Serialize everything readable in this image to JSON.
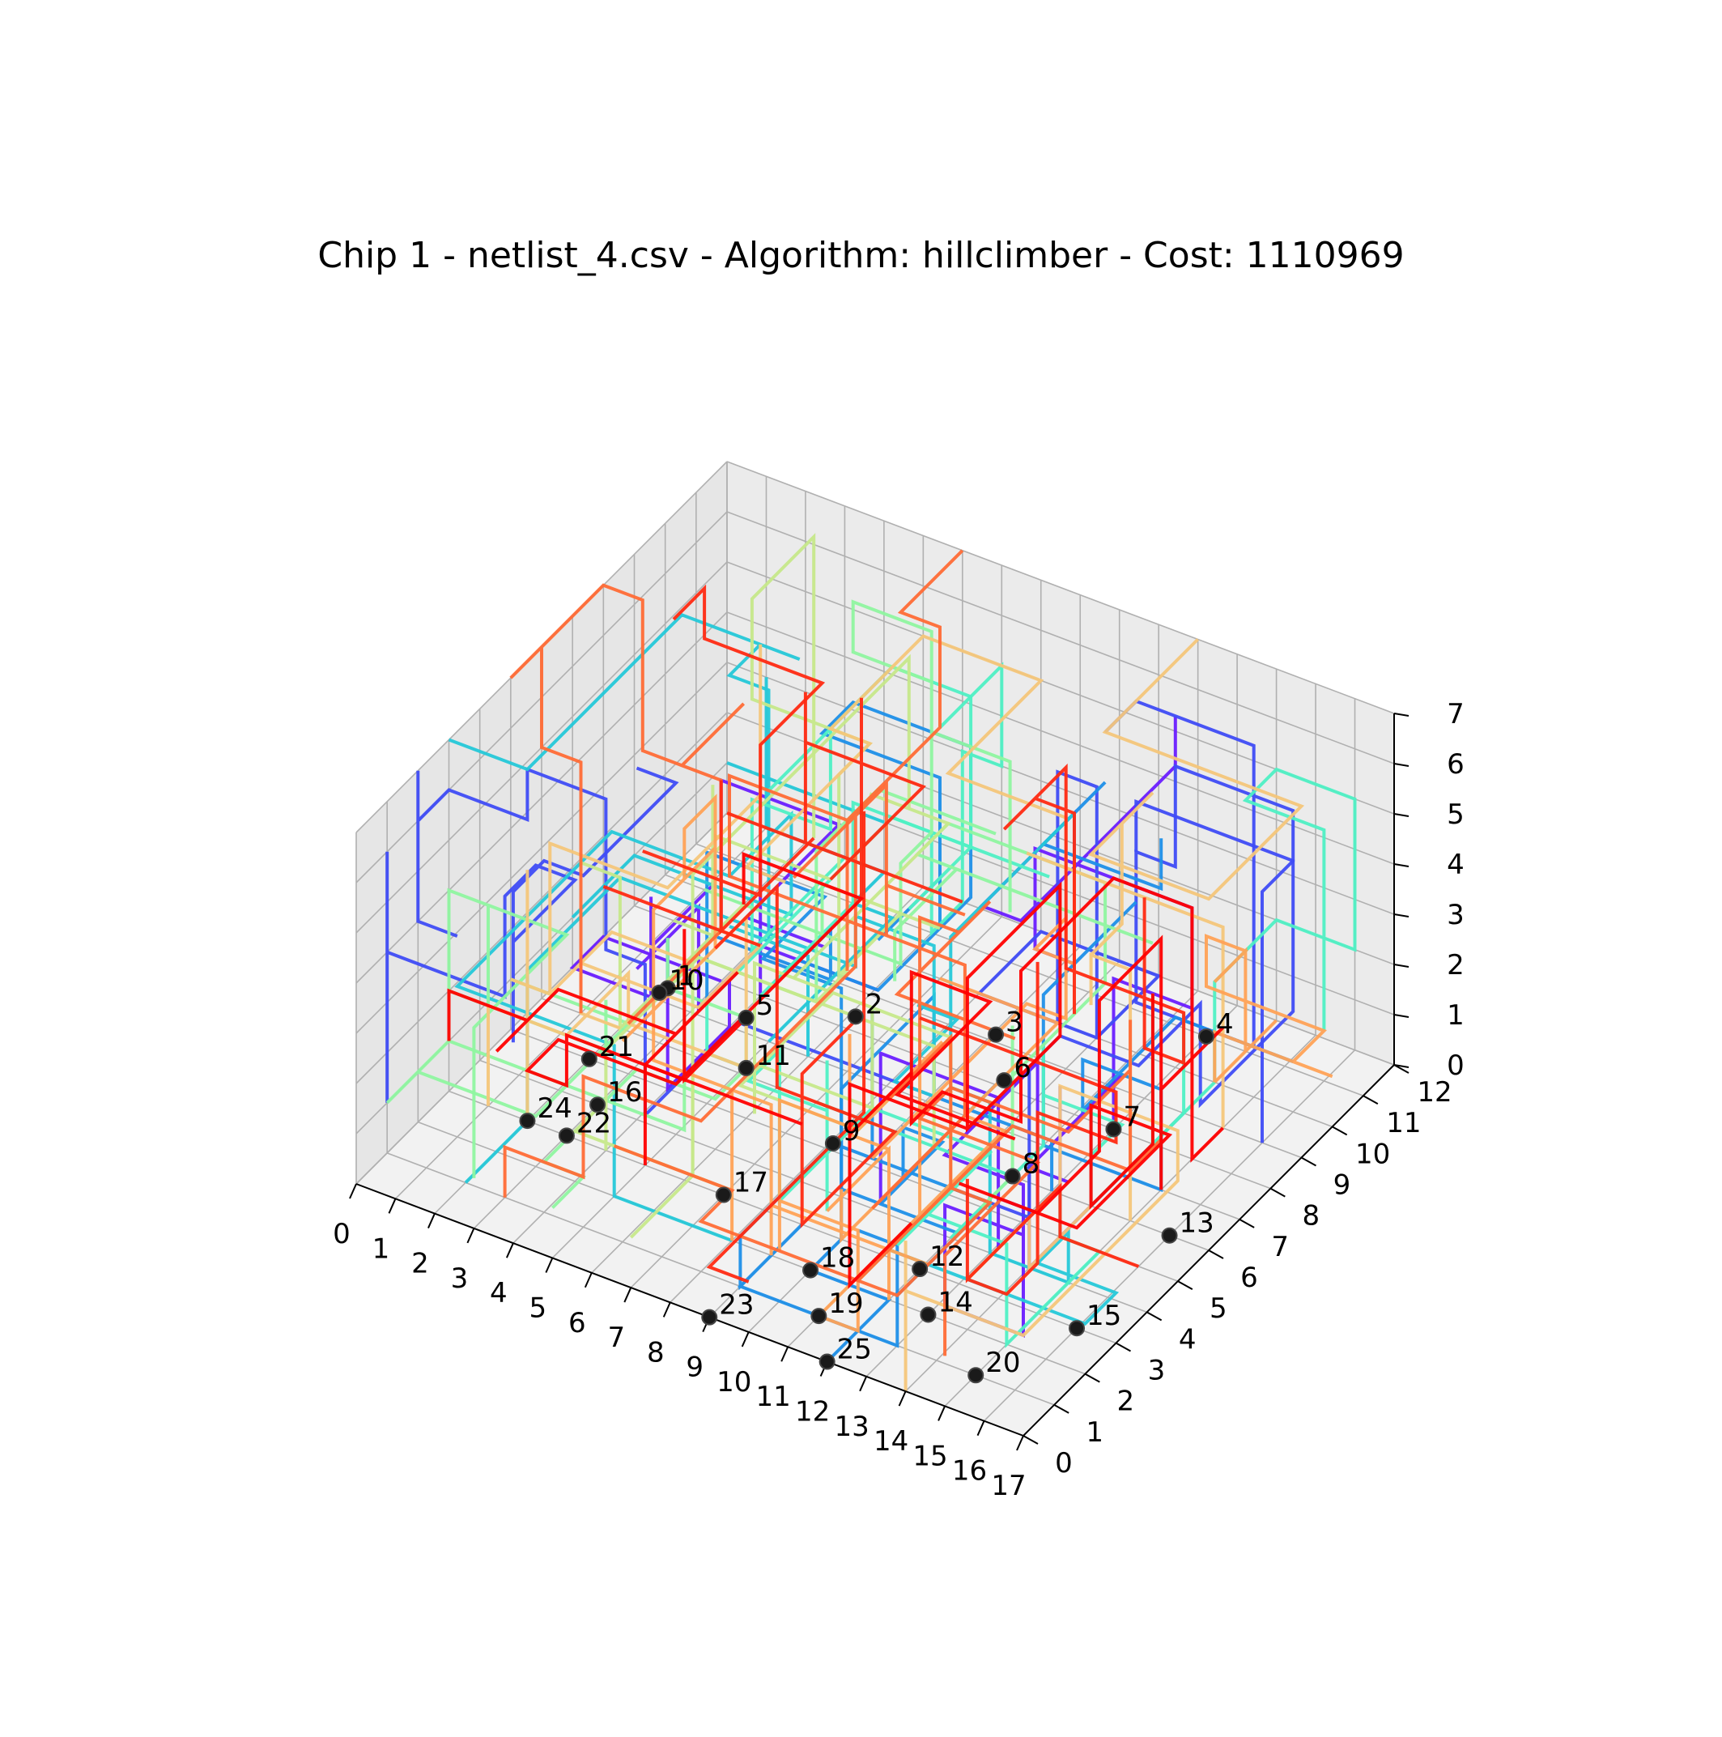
{
  "chart_data": {
    "type": "line3d",
    "title": "Chip 1 - netlist_4.csv - Algorithm: hillclimber - Cost: 1110969",
    "xlabel": "",
    "ylabel": "",
    "zlabel": "",
    "xlim": [
      0,
      17
    ],
    "ylim": [
      0,
      12
    ],
    "zlim": [
      0,
      7
    ],
    "x_ticks": [
      "0",
      "1",
      "2",
      "3",
      "4",
      "5",
      "6",
      "7",
      "8",
      "9",
      "10",
      "11",
      "12",
      "13",
      "14",
      "15",
      "16",
      "17"
    ],
    "y_ticks": [
      "0",
      "1",
      "2",
      "3",
      "4",
      "5",
      "6",
      "7",
      "8",
      "9",
      "10",
      "11",
      "12"
    ],
    "z_ticks": [
      "0",
      "1",
      "2",
      "3",
      "4",
      "5",
      "6",
      "7"
    ],
    "grid": true,
    "colormap": [
      "#6a1eff",
      "#3f4cf5",
      "#1d8fe8",
      "#25c8d8",
      "#4ff0c4",
      "#8ff5a0",
      "#c6e88a",
      "#f4c67a",
      "#ffa256",
      "#ff6c36",
      "#ff2a12",
      "#ff0000"
    ],
    "gates": [
      {
        "label": "1",
        "x": 4,
        "y": 5,
        "z": 2
      },
      {
        "label": "2",
        "x": 8,
        "y": 6,
        "z": 2
      },
      {
        "label": "3",
        "x": 10,
        "y": 8,
        "z": 1
      },
      {
        "label": "4",
        "x": 13,
        "y": 11,
        "z": 0
      },
      {
        "label": "5",
        "x": 6,
        "y": 5,
        "z": 2
      },
      {
        "label": "6",
        "x": 11,
        "y": 7,
        "z": 1
      },
      {
        "label": "7",
        "x": 13,
        "y": 8,
        "z": 0
      },
      {
        "label": "8",
        "x": 12,
        "y": 6,
        "z": 0
      },
      {
        "label": "9",
        "x": 9,
        "y": 4,
        "z": 1
      },
      {
        "label": "10",
        "x": 3,
        "y": 6,
        "z": 1
      },
      {
        "label": "11",
        "x": 6,
        "y": 5,
        "z": 1
      },
      {
        "label": "12",
        "x": 12,
        "y": 3,
        "z": 0
      },
      {
        "label": "13",
        "x": 16,
        "y": 6,
        "z": 0
      },
      {
        "label": "14",
        "x": 13,
        "y": 2,
        "z": 0
      },
      {
        "label": "15",
        "x": 16,
        "y": 3,
        "z": 0
      },
      {
        "label": "16",
        "x": 3,
        "y": 4,
        "z": 0
      },
      {
        "label": "17",
        "x": 7,
        "y": 3,
        "z": 0
      },
      {
        "label": "18",
        "x": 10,
        "y": 2,
        "z": 0
      },
      {
        "label": "19",
        "x": 11,
        "y": 1,
        "z": 0
      },
      {
        "label": "20",
        "x": 15,
        "y": 1,
        "z": 0
      },
      {
        "label": "21",
        "x": 2,
        "y": 5,
        "z": 0
      },
      {
        "label": "22",
        "x": 3,
        "y": 3,
        "z": 0
      },
      {
        "label": "23",
        "x": 9,
        "y": 0,
        "z": 0
      },
      {
        "label": "24",
        "x": 2,
        "y": 3,
        "z": 0
      },
      {
        "label": "25",
        "x": 12,
        "y": 0,
        "z": 0
      }
    ],
    "wire_count": 60,
    "wire_segments_per_net": 14
  }
}
